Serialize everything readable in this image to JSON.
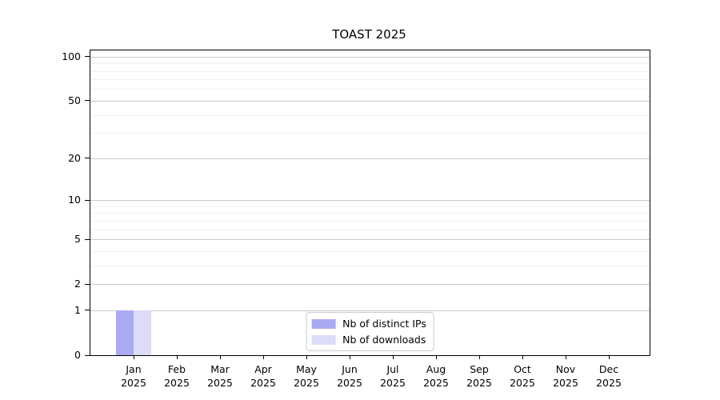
{
  "chart_data": {
    "type": "bar",
    "title": "TOAST 2025",
    "categories": [
      "Jan",
      "Feb",
      "Mar",
      "Apr",
      "May",
      "Jun",
      "Jul",
      "Aug",
      "Sep",
      "Oct",
      "Nov",
      "Dec"
    ],
    "year_label": "2025",
    "series": [
      {
        "name": "Nb of distinct IPs",
        "color": "#aaaaf2",
        "values": [
          1,
          0,
          0,
          0,
          0,
          0,
          0,
          0,
          0,
          0,
          0,
          0
        ]
      },
      {
        "name": "Nb of downloads",
        "color": "#dcdcf8",
        "values": [
          1,
          0,
          0,
          0,
          0,
          0,
          0,
          0,
          0,
          0,
          0,
          0
        ]
      }
    ],
    "yscale": "log1p",
    "ylim": [
      0,
      110
    ],
    "yticks": [
      0,
      1,
      2,
      5,
      10,
      20,
      50,
      100
    ],
    "grid": {
      "major": [
        1,
        2,
        5,
        10,
        20,
        50,
        100
      ],
      "minor": [
        3,
        4,
        6,
        7,
        8,
        9,
        30,
        40,
        60,
        70,
        80,
        90
      ]
    },
    "legend_position": "lower center",
    "colors": {
      "major_grid": "#c9c9c9",
      "minor_grid": "#efefef",
      "axis_frame": "#000000",
      "background": "#ffffff"
    }
  }
}
